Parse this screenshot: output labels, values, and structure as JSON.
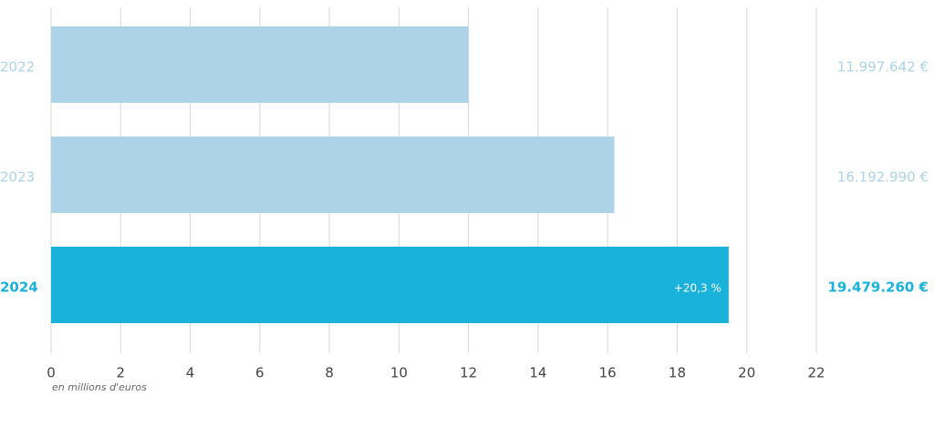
{
  "chart_data": {
    "type": "hbar",
    "categories": [
      "2022",
      "2023",
      "2024"
    ],
    "values": [
      11.997642,
      16.19299,
      19.47926
    ],
    "value_labels": [
      "11.997.642 €",
      "16.192.990 €",
      "19.479.260 €"
    ],
    "colors": [
      "#acd3e8",
      "#acd3e8",
      "#19b2da"
    ],
    "x_label": "en millions d'euros",
    "annotations": [
      {
        "category": "2024",
        "text": "+20,3 %"
      }
    ],
    "xlim": [
      0,
      22
    ],
    "xticks": [
      0,
      2,
      4,
      6,
      8,
      10,
      12,
      14,
      16,
      18,
      20,
      22
    ],
    "grid": true
  }
}
